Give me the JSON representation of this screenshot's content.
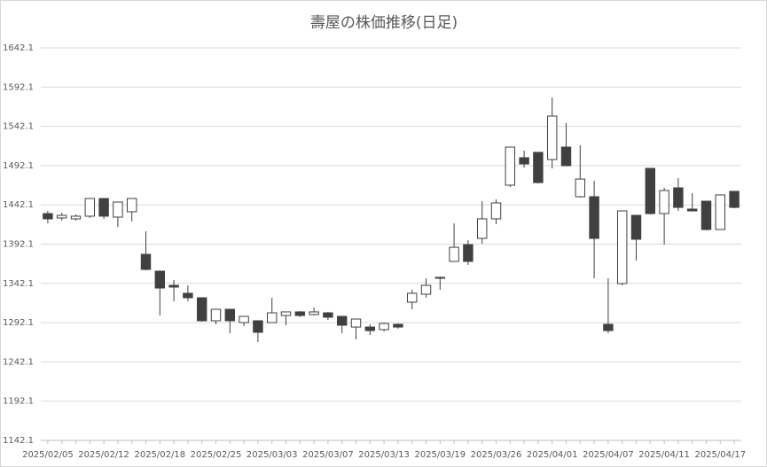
{
  "chart_data": {
    "type": "candlestick",
    "title": "壽屋の株価推移(日足)",
    "categories": [
      "2025/02/05",
      null,
      null,
      null,
      "2025/02/12",
      null,
      null,
      null,
      "2025/02/18",
      null,
      null,
      null,
      "2025/02/25",
      null,
      null,
      null,
      "2025/03/03",
      null,
      null,
      null,
      "2025/03/07",
      null,
      null,
      null,
      "2025/03/13",
      null,
      null,
      null,
      "2025/03/19",
      null,
      null,
      null,
      "2025/03/26",
      null,
      null,
      null,
      "2025/04/01",
      null,
      null,
      null,
      "2025/04/07",
      null,
      null,
      null,
      "2025/04/11",
      null,
      null,
      null,
      "2025/04/17",
      null
    ],
    "open": [
      1431.0,
      1425.4,
      1424.3,
      1427.7,
      1450.2,
      1426.5,
      1433.3,
      1379.1,
      1357.7,
      1339.6,
      1329.5,
      1323.8,
      1294.5,
      1309.1,
      1292.2,
      1294.5,
      1292.2,
      1301.2,
      1305.8,
      1302.4,
      1304.6,
      1300.1,
      1286.5,
      1286.5,
      1283.2,
      1290.0,
      1318.2,
      1328.3,
      1348.6,
      1370.1,
      1391.5,
      1399.4,
      1424.3,
      1467.2,
      1502.2,
      1509.0,
      1499.9,
      1515.7,
      1452.5,
      1452.5,
      1290.0,
      1341.9,
      1428.8,
      1488.6,
      1431.0,
      1463.8,
      1436.7,
      1446.8,
      1410.7,
      1459.3
    ],
    "high": [
      1434.4,
      1432.2,
      1429.9,
      1450.2,
      1450.2,
      1445.7,
      1450.2,
      1408.5,
      1357.7,
      1346.4,
      1339.6,
      1323.8,
      1309.1,
      1309.1,
      1300.1,
      1294.5,
      1323.8,
      1305.8,
      1306.9,
      1311.4,
      1305.8,
      1300.1,
      1296.7,
      1290.0,
      1292.2,
      1291.1,
      1334.0,
      1348.6,
      1350.9,
      1418.6,
      1397.2,
      1446.8,
      1449.1,
      1515.7,
      1511.2,
      1509.0,
      1578.9,
      1546.2,
      1518.0,
      1472.8,
      1348.6,
      1434.4,
      1428.8,
      1488.6,
      1463.8,
      1476.2,
      1457.0,
      1446.8,
      1454.8,
      1459.3
    ],
    "low": [
      1418.6,
      1422.0,
      1422.0,
      1425.4,
      1424.3,
      1414.1,
      1420.9,
      1358.8,
      1301.2,
      1319.3,
      1319.3,
      1293.3,
      1290.0,
      1278.6,
      1287.7,
      1267.4,
      1292.2,
      1288.8,
      1299.0,
      1301.2,
      1295.6,
      1278.6,
      1270.8,
      1276.4,
      1280.9,
      1284.3,
      1309.1,
      1323.8,
      1334.0,
      1370.1,
      1365.6,
      1392.7,
      1417.5,
      1464.9,
      1489.7,
      1469.4,
      1488.6,
      1492.0,
      1451.4,
      1348.6,
      1278.6,
      1339.6,
      1371.2,
      1429.9,
      1391.5,
      1434.4,
      1434.4,
      1409.6,
      1410.7,
      1437.8
    ],
    "close": [
      1424.3,
      1428.8,
      1427.7,
      1450.2,
      1427.7,
      1445.7,
      1450.2,
      1359.9,
      1336.2,
      1337.4,
      1323.8,
      1294.5,
      1309.1,
      1294.5,
      1300.1,
      1279.8,
      1304.6,
      1305.8,
      1301.2,
      1305.8,
      1299.0,
      1288.8,
      1296.7,
      1282.0,
      1291.1,
      1286.5,
      1329.5,
      1339.6,
      1349.8,
      1388.1,
      1370.1,
      1424.3,
      1444.6,
      1515.7,
      1494.2,
      1470.5,
      1555.2,
      1492.0,
      1475.0,
      1399.4,
      1282.0,
      1434.4,
      1398.3,
      1431.0,
      1460.4,
      1438.9,
      1434.4,
      1410.7,
      1454.8,
      1438.9
    ],
    "up_color": "#ffffff",
    "down_color": "#404040",
    "edge_color": "#404040",
    "ylim": [
      1142.1,
      1642.1
    ],
    "yticks": [
      1142.1,
      1192.1,
      1242.1,
      1292.1,
      1342.1,
      1392.1,
      1442.1,
      1492.1,
      1542.1,
      1592.1,
      1642.1
    ],
    "grid": true
  }
}
